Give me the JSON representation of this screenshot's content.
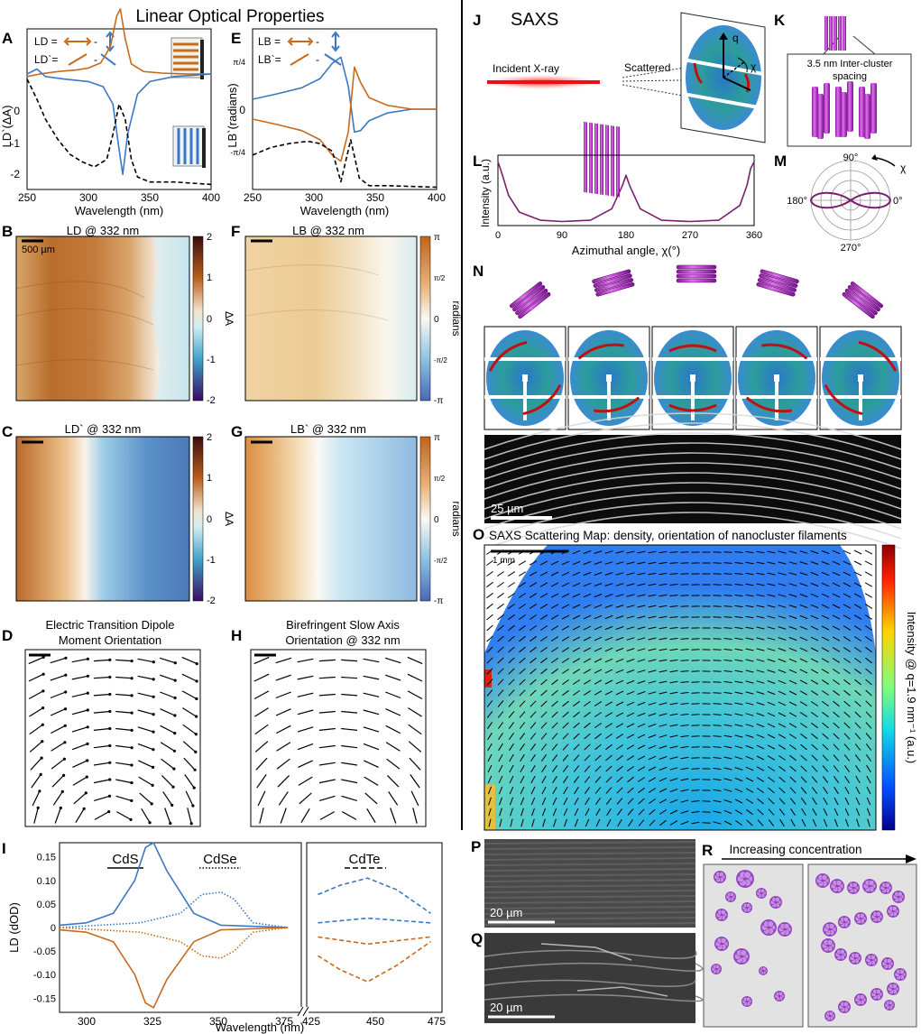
{
  "title": "Linear Optical Properties",
  "panel_letters": {
    "A": "A",
    "B": "B",
    "C": "C",
    "D": "D",
    "E": "E",
    "F": "F",
    "G": "G",
    "H": "H",
    "I": "I",
    "J": "J",
    "K": "K",
    "L": "L",
    "M": "M",
    "N": "N",
    "O": "O",
    "P": "P",
    "Q": "Q",
    "R": "R"
  },
  "colors": {
    "orange": "#c66a1c",
    "blue": "#3b78c4",
    "purple": "#b040c0",
    "dark": "#000000"
  },
  "panelA": {
    "legend1": "LD =",
    "legend2": "LD`=",
    "ylabel": "LD`(ΔA)",
    "xlabel": "Wavelength (nm)",
    "yticks": [
      "0",
      "-1",
      "-2"
    ],
    "xticks": [
      "250",
      "300",
      "350",
      "400"
    ]
  },
  "panelE": {
    "legend1": "LB =",
    "legend2": "LB`=",
    "ylabel": "LB`(radians)",
    "xlabel": "Wavelength (nm)",
    "yticks": [
      "π/4",
      "0",
      "-π/4"
    ],
    "xticks": [
      "250",
      "300",
      "350",
      "400"
    ]
  },
  "panelB": {
    "title": "LD @ 332 nm",
    "scalebar": "500 µm",
    "cbar_label": "ΔA",
    "cbar_ticks": [
      "2",
      "1",
      "0",
      "-1",
      "-2"
    ]
  },
  "panelC": {
    "title": "LD` @ 332 nm",
    "cbar_label": "ΔA",
    "cbar_ticks": [
      "2",
      "1",
      "0",
      "-1",
      "-2"
    ]
  },
  "panelF": {
    "title": "LB @ 332 nm",
    "cbar_label": "radians",
    "cbar_ticks": [
      "π",
      "π/2",
      "0",
      "-π/2",
      "-π"
    ]
  },
  "panelG": {
    "title": "LB` @ 332 nm",
    "cbar_label": "radians",
    "cbar_ticks": [
      "π",
      "π/2",
      "0",
      "-π/2",
      "-π"
    ]
  },
  "panelD": {
    "title1": "Electric Transition Dipole",
    "title2": "Moment Orientation"
  },
  "panelH": {
    "title1": "Birefringent Slow Axis",
    "title2": "Orientation @ 332 nm"
  },
  "panelJ": {
    "title": "SAXS",
    "incident": "Incident X-ray",
    "scattered": "Scattered",
    "q": "q",
    "chi": "χ"
  },
  "panelK": {
    "label1": "3.5 nm Inter-cluster",
    "label2": "spacing"
  },
  "panelL": {
    "ylabel": "Intensity (a.u.)",
    "xlabel": "Azimuthal angle, χ(°)",
    "xticks": [
      "0",
      "90",
      "180",
      "270",
      "360"
    ]
  },
  "panelM": {
    "t90": "90°",
    "t180": "180°",
    "t0": "0°",
    "t270": "270°",
    "chi": "χ"
  },
  "panelN": {
    "scalebar": "25 µm"
  },
  "panelO": {
    "title": "SAXS Scattering Map: density, orientation of nanocluster filaments",
    "scalebar": "1 mm",
    "cbar_label": "Intensity @ q=1.9 nm⁻¹ (a.u.)"
  },
  "panelI": {
    "ylabel": "LD (dOD)",
    "xlabel": "Wavelength (nm)",
    "cds": "CdS",
    "cdse": "CdSe",
    "cdte": "CdTe",
    "yticks": [
      "0.15",
      "0.10",
      "0.05",
      "0",
      "-0.05",
      "-0.10",
      "-0.15"
    ],
    "xticks": [
      "300",
      "325",
      "350",
      "375",
      "425",
      "450",
      "475"
    ]
  },
  "panelP": {
    "scalebar": "20 µm"
  },
  "panelQ": {
    "scalebar": "20 µm"
  },
  "panelR": {
    "label": "Increasing concentration"
  },
  "chart_data": [
    {
      "type": "line",
      "ref": "A",
      "xlabel": "Wavelength (nm)",
      "ylabel": "LD`(ΔA)",
      "xlim": [
        250,
        400
      ],
      "ylim": [
        -2.3,
        0.9
      ],
      "series": [
        {
          "color": "#c66a1c",
          "x": [
            250,
            260,
            275,
            290,
            300,
            310,
            318,
            323,
            326,
            330,
            335,
            345,
            360,
            380,
            400
          ],
          "y": [
            -0.05,
            0.0,
            0.05,
            0.08,
            0.12,
            0.22,
            0.55,
            1.15,
            1.3,
            0.7,
            0.2,
            0.05,
            0.02,
            0.0,
            0.0
          ]
        },
        {
          "color": "#3b78c4",
          "x": [
            250,
            258,
            265,
            280,
            300,
            312,
            320,
            325,
            328,
            332,
            340,
            350,
            370,
            400
          ],
          "y": [
            0.0,
            0.1,
            -0.05,
            -0.1,
            -0.15,
            -0.25,
            -0.6,
            -1.5,
            -2.0,
            -1.2,
            -0.4,
            -0.15,
            -0.05,
            0.0
          ]
        },
        {
          "color": "#000000",
          "dash": true,
          "x": [
            250,
            258,
            265,
            275,
            285,
            295,
            305,
            315,
            320,
            325,
            330,
            335,
            340,
            350,
            370,
            400
          ],
          "y": [
            -0.1,
            -0.5,
            -0.9,
            -1.3,
            -1.6,
            -1.75,
            -1.85,
            -1.7,
            -1.2,
            -0.6,
            -0.9,
            -1.7,
            -2.05,
            -2.15,
            -2.15,
            -2.2
          ]
        }
      ]
    },
    {
      "type": "line",
      "ref": "E",
      "xlabel": "Wavelength (nm)",
      "ylabel": "LB`(radians)",
      "xlim": [
        250,
        400
      ],
      "ylim": [
        -1.05,
        1.05
      ],
      "series": [
        {
          "color": "#3b78c4",
          "x": [
            250,
            270,
            290,
            305,
            315,
            322,
            328,
            333,
            338,
            345,
            360,
            380,
            400
          ],
          "y": [
            0.13,
            0.2,
            0.28,
            0.4,
            0.6,
            0.68,
            0.3,
            -0.3,
            -0.28,
            -0.15,
            -0.05,
            0.0,
            0.0
          ]
        },
        {
          "color": "#c66a1c",
          "x": [
            250,
            270,
            290,
            305,
            315,
            322,
            328,
            333,
            338,
            345,
            360,
            380,
            400
          ],
          "y": [
            -0.13,
            -0.2,
            -0.28,
            -0.4,
            -0.6,
            -0.68,
            -0.3,
            0.55,
            0.35,
            0.15,
            0.05,
            0.0,
            0.0
          ]
        },
        {
          "color": "#000000",
          "dash": true,
          "x": [
            250,
            265,
            280,
            295,
            305,
            315,
            322,
            330,
            337,
            345,
            360,
            400
          ],
          "y": [
            -0.6,
            -0.5,
            -0.45,
            -0.42,
            -0.45,
            -0.55,
            -0.95,
            -0.4,
            -0.9,
            -1.0,
            -1.0,
            -1.02
          ]
        }
      ]
    },
    {
      "type": "line",
      "ref": "L",
      "xlabel": "Azimuthal angle, χ(°)",
      "ylabel": "Intensity (a.u.)",
      "xlim": [
        0,
        360
      ],
      "series": [
        {
          "color": "#7a1f6e",
          "x": [
            0,
            5,
            15,
            30,
            60,
            90,
            130,
            160,
            175,
            180,
            185,
            200,
            230,
            270,
            310,
            340,
            350,
            355,
            360
          ],
          "y": [
            0.95,
            0.8,
            0.45,
            0.2,
            0.08,
            0.06,
            0.08,
            0.25,
            0.6,
            0.75,
            0.6,
            0.25,
            0.08,
            0.06,
            0.08,
            0.3,
            0.6,
            0.85,
            0.95
          ]
        }
      ]
    },
    {
      "type": "line",
      "ref": "I",
      "xlabel": "Wavelength (nm)",
      "ylabel": "LD (dOD)",
      "ylim": [
        -0.18,
        0.18
      ],
      "series": [
        {
          "name": "CdS",
          "color": "#3b78c4",
          "x": [
            290,
            300,
            310,
            318,
            322,
            325,
            330,
            340,
            350,
            375
          ],
          "y": [
            0.005,
            0.01,
            0.03,
            0.1,
            0.17,
            0.18,
            0.12,
            0.03,
            0.005,
            0.0
          ]
        },
        {
          "name": "CdS",
          "color": "#c66a1c",
          "x": [
            290,
            300,
            310,
            318,
            322,
            325,
            330,
            340,
            350,
            375
          ],
          "y": [
            -0.005,
            -0.01,
            -0.03,
            -0.1,
            -0.16,
            -0.17,
            -0.11,
            -0.03,
            -0.005,
            0.0
          ]
        },
        {
          "name": "CdSe",
          "color": "#3b78c4",
          "dash": "dot",
          "x": [
            290,
            320,
            335,
            343,
            350,
            355,
            362,
            375
          ],
          "y": [
            0.0,
            0.01,
            0.03,
            0.07,
            0.075,
            0.06,
            0.01,
            0.0
          ]
        },
        {
          "name": "CdSe",
          "color": "#c66a1c",
          "dash": "dot",
          "x": [
            290,
            320,
            335,
            343,
            350,
            355,
            362,
            375
          ],
          "y": [
            0.0,
            -0.01,
            -0.03,
            -0.06,
            -0.065,
            -0.05,
            -0.01,
            0.0
          ]
        },
        {
          "name": "CdTe",
          "color": "#3b78c4",
          "dash": "dash",
          "x": [
            425,
            435,
            447,
            460,
            475
          ],
          "y": [
            0.07,
            0.09,
            0.105,
            0.08,
            0.03
          ]
        },
        {
          "name": "CdTe",
          "color": "#3b78c4",
          "dash": "dash",
          "x": [
            425,
            447,
            475
          ],
          "y": [
            0.01,
            0.02,
            0.01
          ]
        },
        {
          "name": "CdTe",
          "color": "#c66a1c",
          "dash": "dash",
          "x": [
            425,
            447,
            475
          ],
          "y": [
            -0.02,
            -0.035,
            -0.02
          ]
        },
        {
          "name": "CdTe",
          "color": "#c66a1c",
          "dash": "dash",
          "x": [
            425,
            435,
            447,
            460,
            475
          ],
          "y": [
            -0.06,
            -0.09,
            -0.115,
            -0.08,
            -0.03
          ]
        }
      ]
    }
  ]
}
